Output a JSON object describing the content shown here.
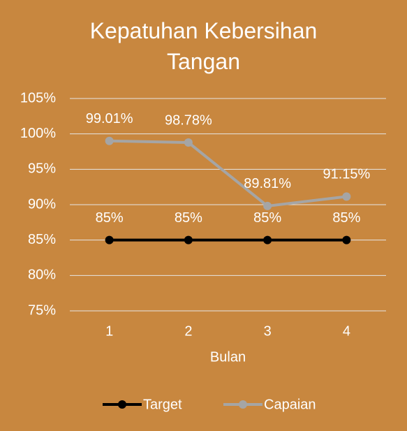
{
  "chart_data": {
    "type": "line",
    "title": "Kepatuhan Kebersihan Tangan",
    "x_label": "Bulan",
    "categories": [
      "1",
      "2",
      "3",
      "4"
    ],
    "series": [
      {
        "name": "Target",
        "color": "#000000",
        "values": [
          85,
          85,
          85,
          85
        ],
        "value_labels": [
          "85%",
          "85%",
          "85%",
          "85%"
        ]
      },
      {
        "name": "Capaian",
        "color": "#a5a5a5",
        "values": [
          99.01,
          98.78,
          89.81,
          91.15
        ],
        "value_labels": [
          "99.01%",
          "98.78%",
          "89.81%",
          "91.15%"
        ]
      }
    ],
    "ylim": [
      75,
      105
    ],
    "yticks": [
      {
        "value": 75,
        "label": "75%"
      },
      {
        "value": 80,
        "label": "80%"
      },
      {
        "value": 85,
        "label": "85%"
      },
      {
        "value": 90,
        "label": "90%"
      },
      {
        "value": 95,
        "label": "95%"
      },
      {
        "value": 100,
        "label": "100%"
      },
      {
        "value": 105,
        "label": "105%"
      }
    ],
    "grid": true,
    "legend": "bottom",
    "background": "#c8873f"
  }
}
